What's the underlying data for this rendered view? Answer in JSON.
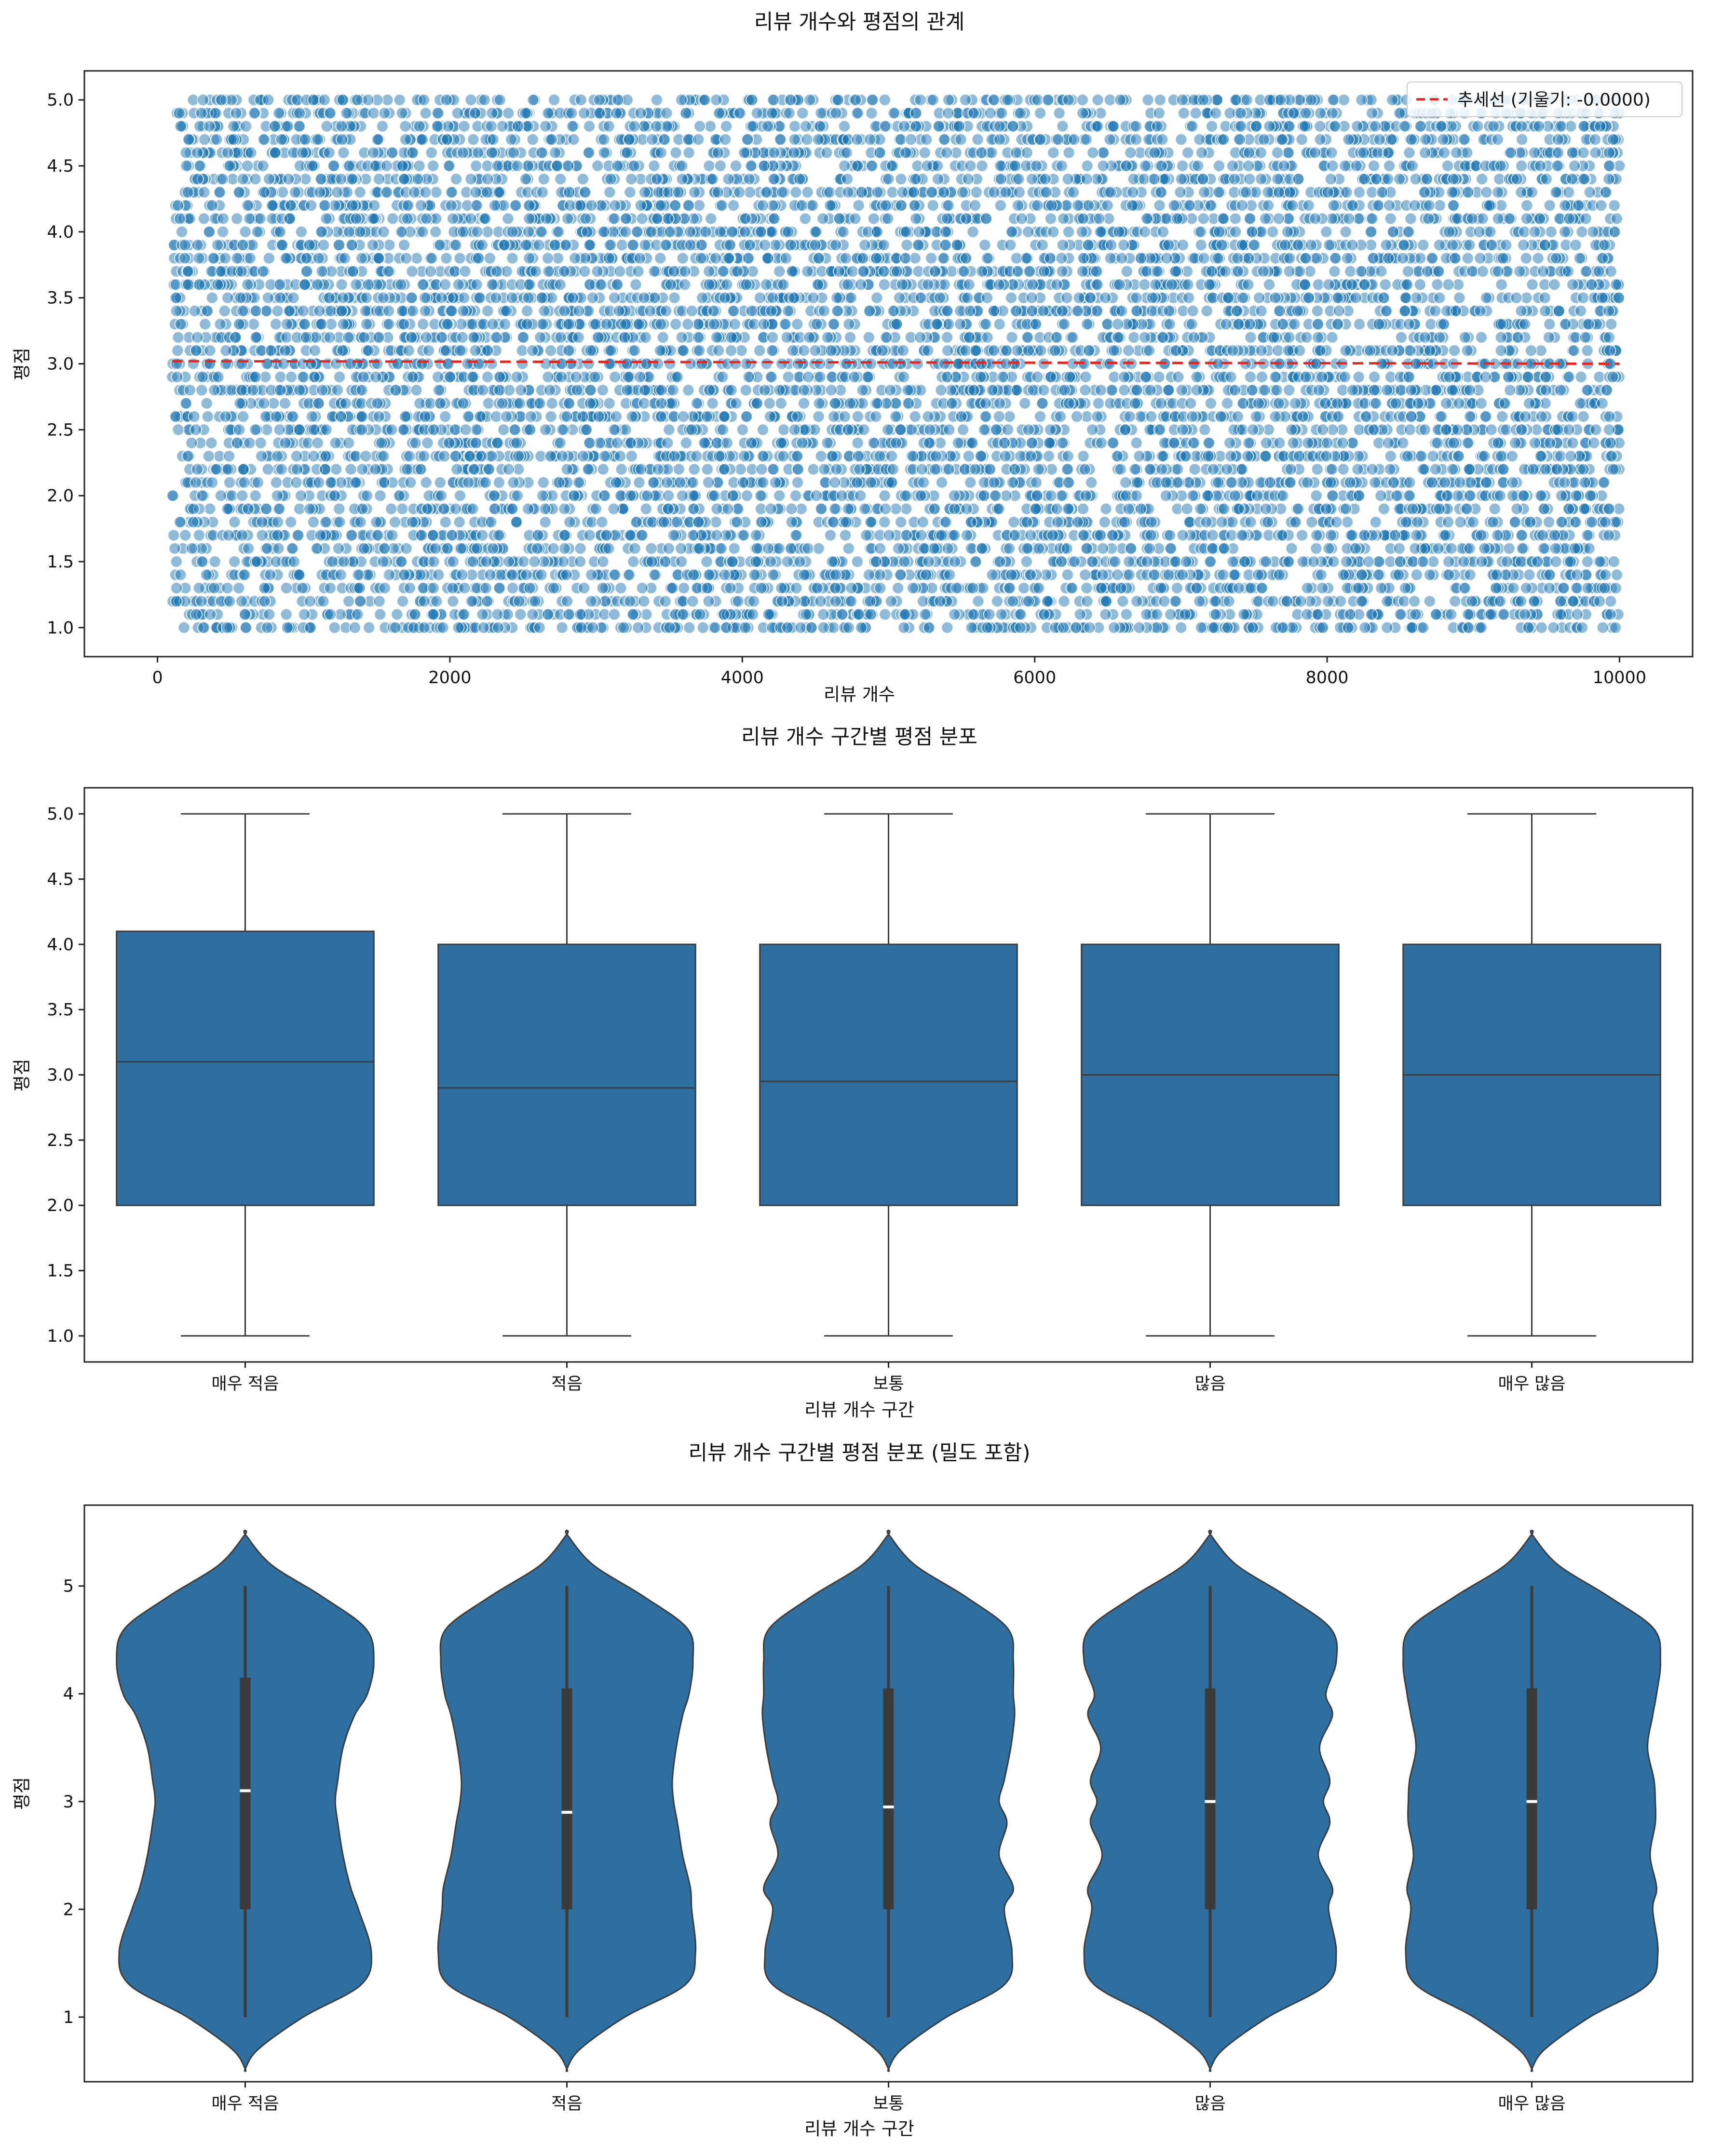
{
  "chart_data": [
    {
      "type": "scatter",
      "title": "리뷰 개수와 평점의 관계",
      "xlabel": "리뷰 개수",
      "ylabel": "평점",
      "xlim": [
        -500,
        10500
      ],
      "ylim": [
        0.78,
        5.22
      ],
      "xticks": [
        0,
        2000,
        4000,
        6000,
        8000,
        10000
      ],
      "yticks": [
        1.0,
        1.5,
        2.0,
        2.5,
        3.0,
        3.5,
        4.0,
        4.5,
        5.0
      ],
      "tick_decimals": 1,
      "x_range": [
        100,
        10000
      ],
      "y_levels": "1.0 to 5.0 in steps of 0.1, points dense across the full range",
      "point_color": "#1f77b4",
      "trendline": {
        "label": "추세선 (기울기: -0.0000)",
        "x": [
          100,
          10000
        ],
        "y": [
          3.02,
          3.0
        ],
        "color": "#e6261f"
      },
      "legend": "top-right",
      "grid": false
    },
    {
      "type": "box",
      "title": "리뷰 개수 구간별 평점 분포",
      "xlabel": "리뷰 개수 구간",
      "ylabel": "평점",
      "ylim": [
        0.8,
        5.2
      ],
      "yticks": [
        1.0,
        1.5,
        2.0,
        2.5,
        3.0,
        3.5,
        4.0,
        4.5,
        5.0
      ],
      "tick_decimals": 1,
      "categories": [
        "매우 적음",
        "적음",
        "보통",
        "많음",
        "매우 많음"
      ],
      "boxes": [
        {
          "min": 1.0,
          "q1": 2.0,
          "median": 3.1,
          "q3": 4.1,
          "max": 5.0
        },
        {
          "min": 1.0,
          "q1": 2.0,
          "median": 2.9,
          "q3": 4.0,
          "max": 5.0
        },
        {
          "min": 1.0,
          "q1": 2.0,
          "median": 2.95,
          "q3": 4.0,
          "max": 5.0
        },
        {
          "min": 1.0,
          "q1": 2.0,
          "median": 3.0,
          "q3": 4.0,
          "max": 5.0
        },
        {
          "min": 1.0,
          "q1": 2.0,
          "median": 3.0,
          "q3": 4.0,
          "max": 5.0
        }
      ],
      "color": "#2f6f9f",
      "grid": false
    },
    {
      "type": "violin",
      "title": "리뷰 개수 구간별 평점 분포 (밀도 포함)",
      "xlabel": "리뷰 개수 구간",
      "ylabel": "평점",
      "ylim": [
        0.4,
        5.75
      ],
      "yticks": [
        1,
        2,
        3,
        4,
        5
      ],
      "tick_decimals": 0,
      "categories": [
        "매우 적음",
        "적음",
        "보통",
        "많음",
        "매우 많음"
      ],
      "density_y": [
        0.52,
        0.7,
        1.0,
        1.3,
        1.6,
        2.0,
        2.2,
        2.5,
        2.8,
        3.0,
        3.2,
        3.5,
        3.8,
        4.0,
        4.3,
        4.6,
        4.9,
        5.2,
        5.48
      ],
      "density_widths": [
        [
          0.0,
          0.1,
          0.45,
          0.9,
          0.98,
          0.88,
          0.82,
          0.76,
          0.72,
          0.7,
          0.72,
          0.76,
          0.85,
          0.95,
          1.0,
          0.94,
          0.6,
          0.2,
          0.0
        ],
        [
          0.0,
          0.1,
          0.45,
          0.92,
          1.0,
          0.97,
          0.96,
          0.9,
          0.86,
          0.83,
          0.82,
          0.85,
          0.9,
          0.95,
          0.98,
          0.94,
          0.6,
          0.2,
          0.0
        ],
        [
          0.0,
          0.1,
          0.45,
          0.9,
          0.96,
          0.9,
          0.97,
          0.86,
          0.92,
          0.86,
          0.9,
          0.95,
          0.98,
          0.97,
          0.97,
          0.93,
          0.6,
          0.2,
          0.0
        ],
        [
          0.0,
          0.1,
          0.45,
          0.9,
          0.98,
          0.92,
          0.95,
          0.84,
          0.93,
          0.88,
          0.93,
          0.85,
          0.95,
          0.9,
          0.98,
          0.94,
          0.6,
          0.2,
          0.0
        ],
        [
          0.0,
          0.1,
          0.45,
          0.9,
          0.98,
          0.94,
          0.97,
          0.92,
          0.96,
          0.96,
          0.95,
          0.9,
          0.94,
          0.97,
          1.0,
          0.95,
          0.6,
          0.2,
          0.0
        ]
      ],
      "inner_box": [
        {
          "min": 1.0,
          "q1": 2.0,
          "median": 3.1,
          "q3": 4.15,
          "max": 5.0
        },
        {
          "min": 1.0,
          "q1": 2.0,
          "median": 2.9,
          "q3": 4.05,
          "max": 5.0
        },
        {
          "min": 1.0,
          "q1": 2.0,
          "median": 2.95,
          "q3": 4.05,
          "max": 5.0
        },
        {
          "min": 1.0,
          "q1": 2.0,
          "median": 3.0,
          "q3": 4.05,
          "max": 5.0
        },
        {
          "min": 1.0,
          "q1": 2.0,
          "median": 3.0,
          "q3": 4.05,
          "max": 5.0
        }
      ],
      "color": "#2f6f9f",
      "grid": false
    }
  ]
}
